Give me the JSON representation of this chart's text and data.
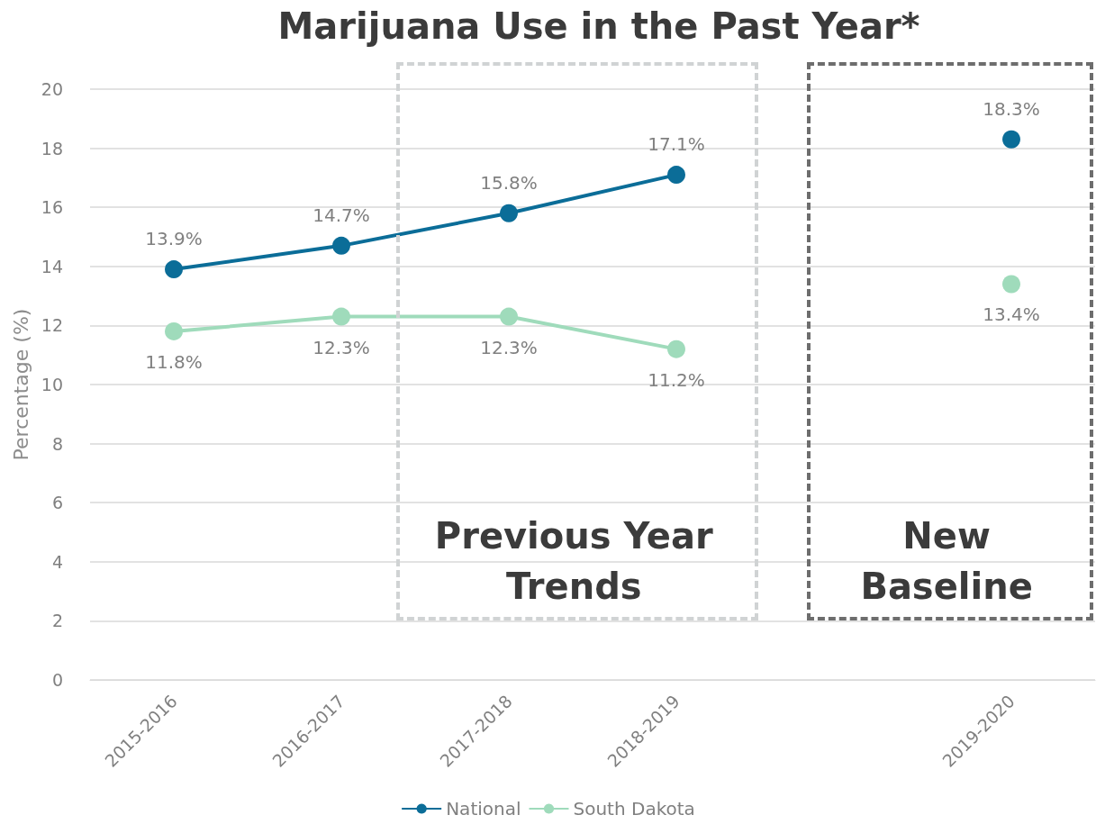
{
  "chart_data": {
    "type": "line",
    "title": "Marijuana Use in the Past Year*",
    "ylabel": "Percentage (%)",
    "categories": [
      "2015-2016",
      "2016-2017",
      "2017-2018",
      "2018-2019",
      null,
      "2019-2020"
    ],
    "series": [
      {
        "name": "National",
        "color": "#0b6d98",
        "values": [
          13.9,
          14.7,
          15.8,
          17.1,
          null,
          18.3
        ],
        "value_labels": [
          "13.9%",
          "14.7%",
          "15.8%",
          "17.1%",
          null,
          "18.3%"
        ]
      },
      {
        "name": "South Dakota",
        "color": "#9fdbbb",
        "values": [
          11.8,
          12.3,
          12.3,
          11.2,
          null,
          13.4
        ],
        "value_labels": [
          "11.8%",
          "12.3%",
          "12.3%",
          "11.2%",
          null,
          "13.4%"
        ]
      }
    ],
    "ylim": [
      0,
      20
    ],
    "yticks": [
      0,
      2,
      4,
      6,
      8,
      10,
      12,
      14,
      16,
      18,
      20
    ],
    "grid": "y",
    "legend": "bottom",
    "marker": "circle",
    "line_style": "solid",
    "annotations": [
      "Previous Year Trends",
      "New Baseline"
    ]
  }
}
